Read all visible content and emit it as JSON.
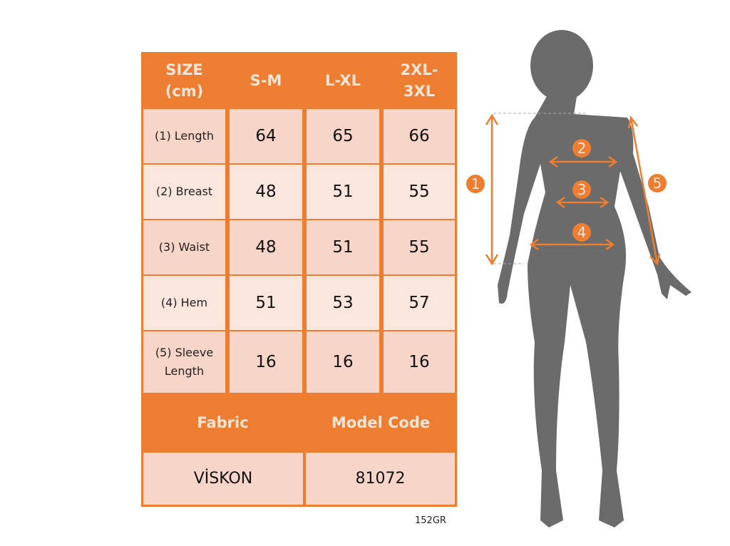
{
  "table": {
    "header": [
      "SIZE\n(cm)",
      "S-M",
      "L-XL",
      "2XL-\n3XL"
    ],
    "rows": [
      {
        "label": "(1) Length",
        "values": [
          "64",
          "65",
          "66"
        ]
      },
      {
        "label": "(2) Breast",
        "values": [
          "48",
          "51",
          "55"
        ]
      },
      {
        "label": "(3) Waist",
        "values": [
          "48",
          "51",
          "55"
        ]
      },
      {
        "label": "(4) Hem",
        "values": [
          "51",
          "53",
          "57"
        ]
      },
      {
        "label": "(5) Sleeve\nLength",
        "values": [
          "16",
          "16",
          "16"
        ]
      }
    ],
    "footer_header": [
      "Fabric",
      "Model Code"
    ],
    "footer_values": [
      "VİSKON",
      "81072"
    ]
  },
  "product_code": "152GR",
  "figure": {
    "markers": [
      "1",
      "2",
      "3",
      "4",
      "5"
    ]
  },
  "colors": {
    "accent": "#ED7D31",
    "cell_dark": "#F8D5C9",
    "cell_light": "#FBE6DD",
    "silhouette": "#6B6B6B"
  }
}
